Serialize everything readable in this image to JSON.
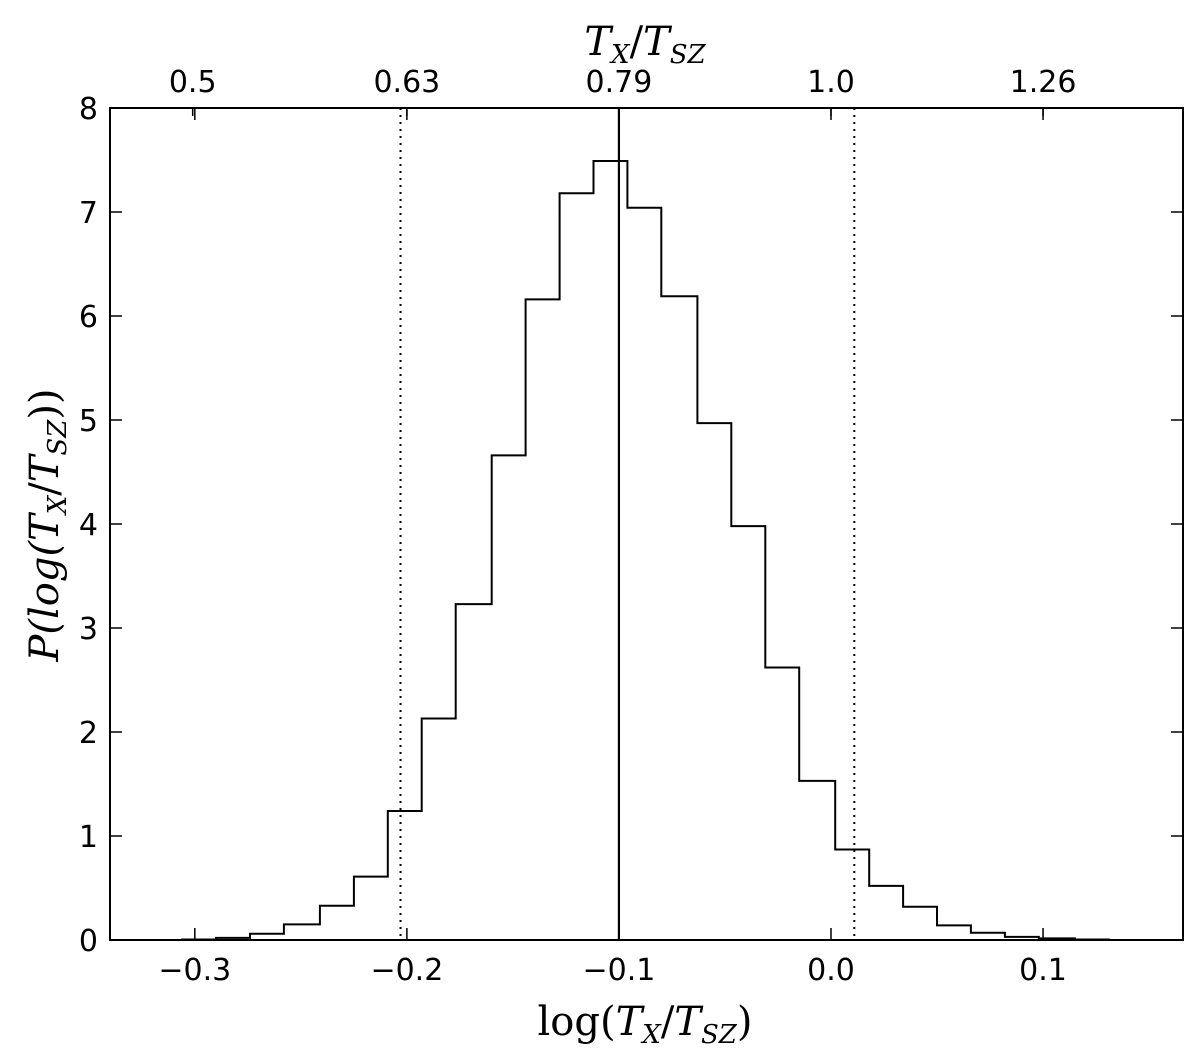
{
  "chart_data": {
    "type": "histogram",
    "xlabel": {
      "pre": "log(",
      "t1": "T",
      "s1": "X",
      "slash": "/",
      "t2": "T",
      "s2": "SZ",
      "post": ")"
    },
    "ylabel": {
      "pre": "P(log(",
      "t1": "T",
      "s1": "X",
      "slash": "/",
      "t2": "T",
      "s2": "SZ",
      "post": "))"
    },
    "top_xlabel": {
      "t1": "T",
      "s1": "X",
      "slash": "/",
      "t2": "T",
      "s2": "SZ"
    },
    "xlim": [
      -0.34,
      0.166
    ],
    "ylim": [
      0,
      8
    ],
    "x_ticks": [
      -0.3,
      -0.2,
      -0.1,
      0.0,
      0.1
    ],
    "x_tick_labels": [
      "−0.3",
      "−0.2",
      "−0.1",
      "0.0",
      "0.1"
    ],
    "y_ticks": [
      0,
      1,
      2,
      3,
      4,
      5,
      6,
      7,
      8
    ],
    "y_tick_labels": [
      "0",
      "1",
      "2",
      "3",
      "4",
      "5",
      "6",
      "7",
      "8"
    ],
    "top_ticks": [
      -0.301,
      -0.2,
      -0.1,
      0.0,
      0.1
    ],
    "top_tick_labels": [
      "0.5",
      "0.63",
      "0.79",
      "1.0",
      "1.26"
    ],
    "bin_edges": [
      -0.306,
      -0.29,
      -0.274,
      -0.258,
      -0.241,
      -0.225,
      -0.209,
      -0.193,
      -0.177,
      -0.16,
      -0.144,
      -0.128,
      -0.112,
      -0.096,
      -0.08,
      -0.063,
      -0.047,
      -0.031,
      -0.015,
      0.002,
      0.018,
      0.034,
      0.05,
      0.066,
      0.082,
      0.098,
      0.115,
      0.131
    ],
    "counts": [
      0.005,
      0.02,
      0.06,
      0.15,
      0.33,
      0.61,
      1.24,
      2.13,
      3.23,
      4.66,
      6.16,
      7.18,
      7.49,
      7.04,
      6.19,
      4.97,
      3.98,
      2.62,
      1.53,
      0.87,
      0.52,
      0.32,
      0.14,
      0.07,
      0.03,
      0.015,
      0.005
    ],
    "median_line": -0.1,
    "dotted_lines": [
      -0.203,
      0.011
    ],
    "line_color": "#000000",
    "grid": false,
    "legend": "none"
  }
}
